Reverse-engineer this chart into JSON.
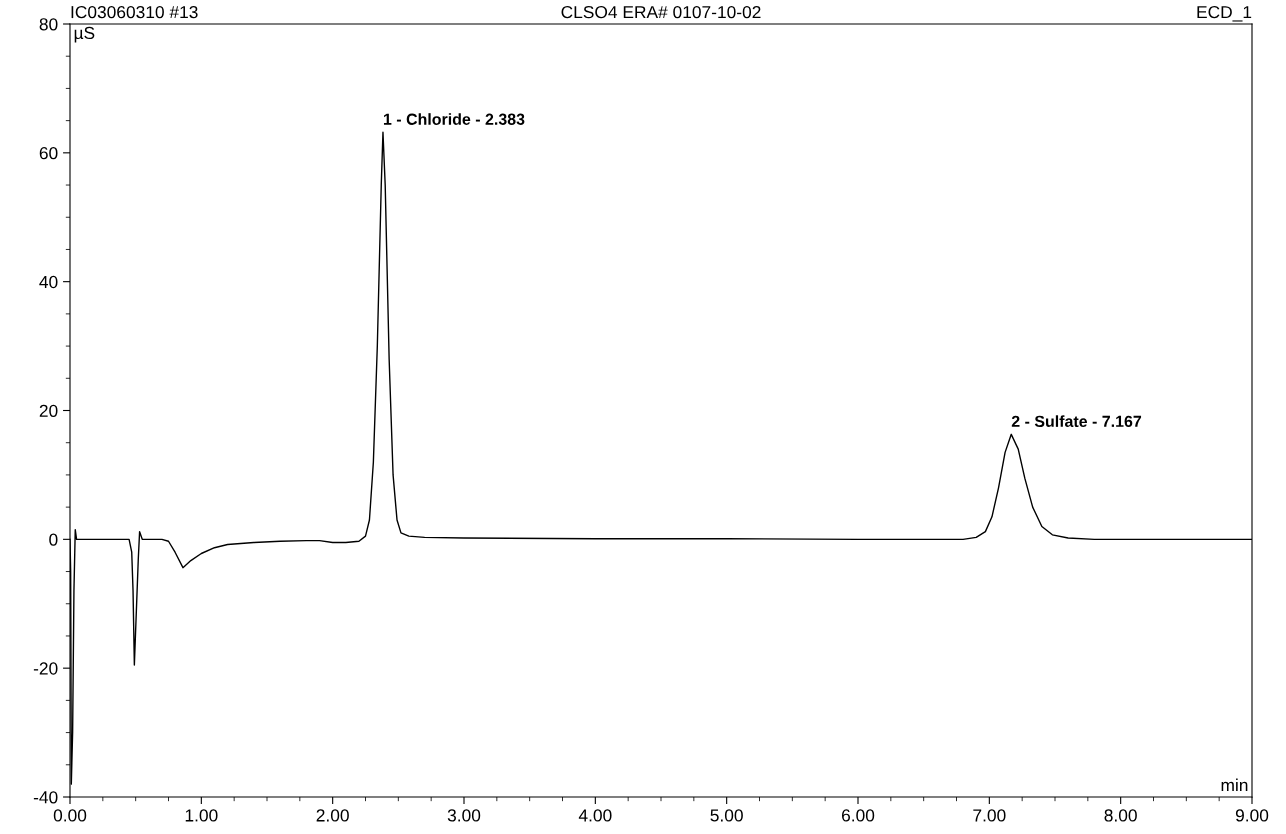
{
  "chart_data": {
    "type": "line",
    "title": "CLSO4 ERA# 0107-10-02",
    "xlabel": "min",
    "ylabel": "µS",
    "annotations": [
      "IC03060310 #13",
      "ECD_1",
      {
        "text": "1 - Chloride - 2.383",
        "x": 2.383,
        "y": 63.2
      },
      {
        "text": "2 - Sulfate - 7.167",
        "x": 7.167,
        "y": 16.3
      }
    ],
    "series": [
      {
        "color": "#000000",
        "x": [
          0.0,
          0.005,
          0.01,
          0.02,
          0.03,
          0.04,
          0.05,
          0.1,
          0.3,
          0.45,
          0.47,
          0.48,
          0.49,
          0.5,
          0.52,
          0.53,
          0.55,
          0.7,
          0.75,
          0.8,
          0.86,
          0.92,
          1.0,
          1.1,
          1.2,
          1.4,
          1.6,
          1.8,
          1.9,
          2.0,
          2.1,
          2.2,
          2.25,
          2.28,
          2.31,
          2.34,
          2.37,
          2.383,
          2.4,
          2.43,
          2.46,
          2.49,
          2.52,
          2.58,
          2.7,
          3.0,
          4.0,
          5.0,
          6.0,
          6.8,
          6.9,
          6.97,
          7.02,
          7.07,
          7.12,
          7.167,
          7.22,
          7.27,
          7.33,
          7.4,
          7.48,
          7.6,
          7.8,
          8.5,
          9.0
        ],
        "values": [
          0,
          -5,
          -38,
          -30,
          -8,
          1.5,
          0,
          0,
          0,
          0,
          -2,
          -8,
          -19.5,
          -14,
          -3,
          1.2,
          0,
          0,
          -0.3,
          -2,
          -4.4,
          -3.3,
          -2.2,
          -1.3,
          -0.8,
          -0.5,
          -0.3,
          -0.2,
          -0.2,
          -0.5,
          -0.5,
          -0.3,
          0.5,
          3,
          12,
          30,
          55,
          63.2,
          55,
          28,
          10,
          3,
          1,
          0.5,
          0.3,
          0.2,
          0.1,
          0.1,
          0,
          0,
          0.3,
          1.2,
          3.5,
          8,
          13.5,
          16.3,
          14,
          9.5,
          5,
          2,
          0.7,
          0.2,
          0,
          0,
          0
        ]
      }
    ],
    "xlim": [
      0,
      9
    ],
    "ylim": [
      -40,
      80
    ],
    "xticks": [
      {
        "value": 0,
        "label": "0.00"
      },
      {
        "value": 1,
        "label": "1.00"
      },
      {
        "value": 2,
        "label": "2.00"
      },
      {
        "value": 3,
        "label": "3.00"
      },
      {
        "value": 4,
        "label": "4.00"
      },
      {
        "value": 5,
        "label": "5.00"
      },
      {
        "value": 6,
        "label": "6.00"
      },
      {
        "value": 7,
        "label": "7.00"
      },
      {
        "value": 8,
        "label": "8.00"
      },
      {
        "value": 9,
        "label": "9.00"
      }
    ],
    "yticks": [
      -40,
      -20,
      0,
      20,
      40,
      60,
      80
    ],
    "grid": false,
    "legend": false,
    "marker": "none",
    "line_style": "solid"
  }
}
